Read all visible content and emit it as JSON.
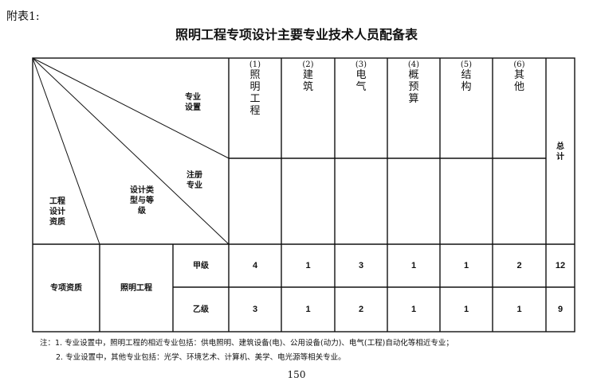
{
  "annex_label": "附表1:",
  "title": "照明工程专项设计主要专业技术人员配备表",
  "header": {
    "diag_top": "专业设置",
    "diag_mid": "注册专业",
    "diag_design": "设计类型与等级",
    "diag_left": "工程设计资质",
    "columns": [
      {
        "num": "(1)",
        "name": "照明工程"
      },
      {
        "num": "(2)",
        "name": "建筑"
      },
      {
        "num": "(3)",
        "name": "电气"
      },
      {
        "num": "(4)",
        "name": "概预算"
      },
      {
        "num": "(5)",
        "name": "结构"
      },
      {
        "num": "(6)",
        "name": "其他"
      }
    ],
    "total": "总计"
  },
  "rows_group": {
    "qualification": "专项资质",
    "type": "照明工程"
  },
  "rows": [
    {
      "grade": "甲级",
      "values": [
        "4",
        "1",
        "3",
        "1",
        "1",
        "2"
      ],
      "total": "12"
    },
    {
      "grade": "乙级",
      "values": [
        "3",
        "1",
        "2",
        "1",
        "1",
        "1"
      ],
      "total": "9"
    }
  ],
  "notes": [
    "注：1. 专业设置中，照明工程的相近专业包括：供电照明、建筑设备(电)、公用设备(动力)、电气(工程)自动化等相近专业；",
    "2. 专业设置中，其他专业包括：光学、环境艺术、计算机、美学、电光源等相关专业。"
  ],
  "page_number": "150"
}
